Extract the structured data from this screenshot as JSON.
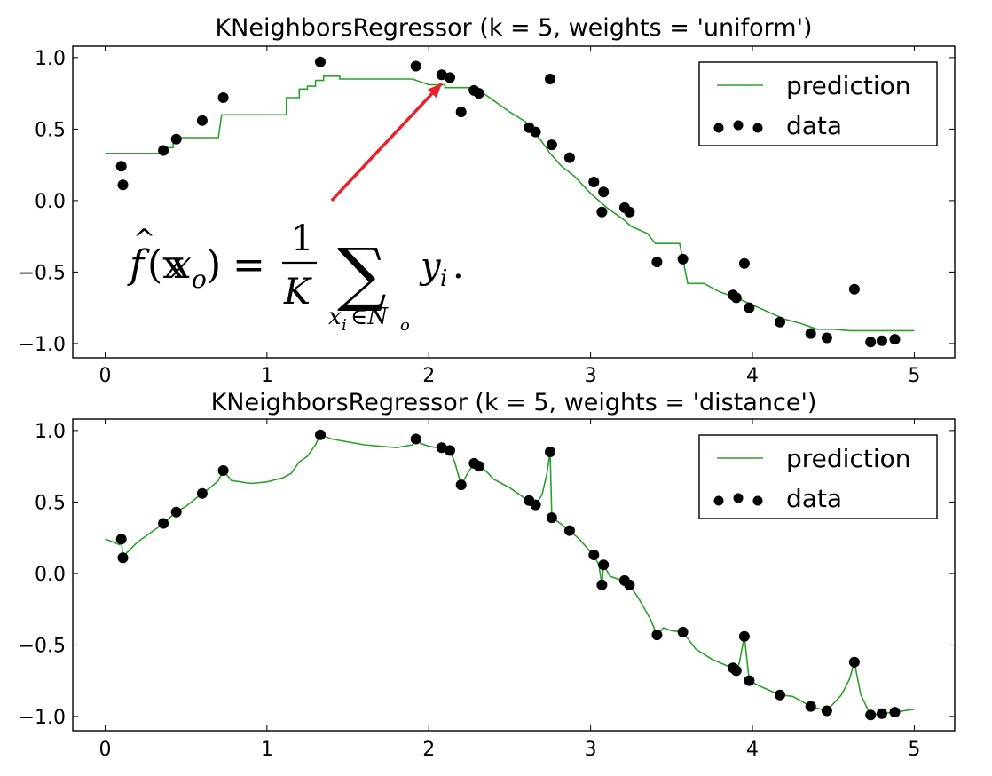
{
  "chart_data": [
    {
      "type": "line",
      "title": "KNeighborsRegressor (k = 5, weights = 'uniform')",
      "xlabel": "",
      "ylabel": "",
      "xlim": [
        -0.2,
        5.25
      ],
      "ylim": [
        -1.1,
        1.08
      ],
      "xticks": [
        0,
        1,
        2,
        3,
        4,
        5
      ],
      "xtick_labels": [
        "0",
        "1",
        "2",
        "3",
        "4",
        "5"
      ],
      "yticks": [
        1.0,
        0.5,
        0.0,
        -0.5,
        -1.0
      ],
      "ytick_labels": [
        "1.0",
        "0.5",
        "0.0",
        "−0.5",
        "−1.0"
      ],
      "legend_position": "top-right",
      "series": [
        {
          "name": "prediction",
          "kind": "line",
          "color": "#2ca02c",
          "x": [
            0,
            0.1,
            0.1,
            0.35,
            0.35,
            0.42,
            0.42,
            0.6,
            0.6,
            0.65,
            0.7,
            0.72,
            1.0,
            1.12,
            1.12,
            1.2,
            1.2,
            1.25,
            1.25,
            1.3,
            1.3,
            1.35,
            1.35,
            1.45,
            1.45,
            1.7,
            1.9,
            2.0,
            2.0,
            2.05,
            2.1,
            2.1,
            2.25,
            2.25,
            2.3,
            2.35,
            2.4,
            2.45,
            2.5,
            2.6,
            2.65,
            2.7,
            2.75,
            2.82,
            2.9,
            2.95,
            3.0,
            3.05,
            3.1,
            3.15,
            3.2,
            3.25,
            3.35,
            3.4,
            3.55,
            3.6,
            3.7,
            3.8,
            3.9,
            4.0,
            4.1,
            4.2,
            4.3,
            4.4,
            4.5,
            4.6,
            4.8,
            5.0
          ],
          "y": [
            0.33,
            0.33,
            0.33,
            0.33,
            0.37,
            0.37,
            0.44,
            0.44,
            0.44,
            0.44,
            0.44,
            0.6,
            0.6,
            0.6,
            0.72,
            0.72,
            0.78,
            0.78,
            0.8,
            0.8,
            0.84,
            0.84,
            0.87,
            0.87,
            0.85,
            0.85,
            0.85,
            0.81,
            0.81,
            0.81,
            0.81,
            0.79,
            0.79,
            0.77,
            0.77,
            0.74,
            0.7,
            0.66,
            0.62,
            0.55,
            0.48,
            0.41,
            0.33,
            0.24,
            0.17,
            0.11,
            0.05,
            0.0,
            -0.05,
            -0.09,
            -0.13,
            -0.18,
            -0.23,
            -0.3,
            -0.3,
            -0.58,
            -0.58,
            -0.64,
            -0.68,
            -0.73,
            -0.78,
            -0.83,
            -0.86,
            -0.9,
            -0.9,
            -0.91,
            -0.91,
            -0.91
          ]
        },
        {
          "name": "data",
          "kind": "scatter",
          "color": "#000000",
          "x": [
            0.1,
            0.11,
            0.36,
            0.44,
            0.6,
            0.73,
            1.33,
            1.92,
            2.08,
            2.13,
            2.2,
            2.28,
            2.31,
            2.62,
            2.66,
            2.75,
            2.76,
            2.87,
            3.02,
            3.07,
            3.08,
            3.21,
            3.24,
            3.41,
            3.57,
            3.88,
            3.9,
            3.95,
            3.98,
            4.17,
            4.36,
            4.46,
            4.63,
            4.73,
            4.8,
            4.88
          ],
          "y": [
            0.24,
            0.11,
            0.35,
            0.43,
            0.56,
            0.72,
            0.97,
            0.94,
            0.88,
            0.86,
            0.62,
            0.77,
            0.75,
            0.51,
            0.48,
            0.85,
            0.39,
            0.3,
            0.13,
            -0.08,
            0.06,
            -0.05,
            -0.08,
            -0.43,
            -0.41,
            -0.66,
            -0.68,
            -0.44,
            -0.75,
            -0.85,
            -0.93,
            -0.96,
            -0.62,
            -0.99,
            -0.98,
            -0.97
          ]
        }
      ],
      "annotation": {
        "formula_f": "f",
        "formula_hat": "^",
        "formula_arg": "(x",
        "formula_arg_sub": "o",
        "formula_arg_close": ")",
        "formula_eq": "=",
        "formula_num": "1",
        "formula_den": "K",
        "formula_sum": "∑",
        "formula_sum_sub_a": "x",
        "formula_sum_sub_a_sub": "i",
        "formula_sum_sub_b": "∈N",
        "formula_sum_sub_b_sub": "o",
        "formula_term": "y",
        "formula_term_sub": "i",
        "formula_period": ".",
        "arrow_color": "#e8212a",
        "arrow_from": [
          1.4,
          0.0
        ],
        "arrow_to": [
          2.08,
          0.82
        ]
      }
    },
    {
      "type": "line",
      "title": "KNeighborsRegressor (k = 5, weights = 'distance')",
      "xlabel": "",
      "ylabel": "",
      "xlim": [
        -0.2,
        5.25
      ],
      "ylim": [
        -1.1,
        1.08
      ],
      "xticks": [
        0,
        1,
        2,
        3,
        4,
        5
      ],
      "xtick_labels": [
        "0",
        "1",
        "2",
        "3",
        "4",
        "5"
      ],
      "yticks": [
        1.0,
        0.5,
        0.0,
        -0.5,
        -1.0
      ],
      "ytick_labels": [
        "1.0",
        "0.5",
        "0.0",
        "−0.5",
        "−1.0"
      ],
      "legend_position": "top-right",
      "series": [
        {
          "name": "prediction",
          "kind": "line",
          "color": "#2ca02c",
          "x": [
            0,
            0.05,
            0.09,
            0.1,
            0.11,
            0.12,
            0.2,
            0.3,
            0.36,
            0.44,
            0.5,
            0.6,
            0.65,
            0.7,
            0.73,
            0.78,
            0.9,
            1.0,
            1.1,
            1.15,
            1.2,
            1.25,
            1.3,
            1.33,
            1.4,
            1.6,
            1.8,
            1.9,
            1.92,
            1.95,
            2.0,
            2.05,
            2.08,
            2.13,
            2.16,
            2.2,
            2.24,
            2.28,
            2.31,
            2.35,
            2.4,
            2.45,
            2.5,
            2.55,
            2.6,
            2.62,
            2.66,
            2.7,
            2.73,
            2.75,
            2.76,
            2.8,
            2.87,
            2.93,
            3.0,
            3.02,
            3.05,
            3.07,
            3.08,
            3.12,
            3.17,
            3.21,
            3.24,
            3.3,
            3.37,
            3.41,
            3.45,
            3.5,
            3.57,
            3.65,
            3.75,
            3.85,
            3.88,
            3.9,
            3.92,
            3.95,
            3.98,
            4.05,
            4.17,
            4.25,
            4.36,
            4.46,
            4.55,
            4.6,
            4.63,
            4.67,
            4.73,
            4.8,
            4.88,
            5.0
          ],
          "y": [
            0.24,
            0.22,
            0.2,
            0.24,
            0.11,
            0.13,
            0.22,
            0.3,
            0.35,
            0.43,
            0.47,
            0.56,
            0.6,
            0.65,
            0.72,
            0.65,
            0.63,
            0.64,
            0.67,
            0.7,
            0.78,
            0.82,
            0.9,
            0.97,
            0.94,
            0.9,
            0.88,
            0.9,
            0.94,
            0.91,
            0.89,
            0.88,
            0.88,
            0.86,
            0.78,
            0.62,
            0.7,
            0.77,
            0.75,
            0.72,
            0.66,
            0.63,
            0.6,
            0.56,
            0.52,
            0.51,
            0.48,
            0.55,
            0.7,
            0.85,
            0.39,
            0.36,
            0.3,
            0.24,
            0.15,
            0.13,
            0.06,
            -0.08,
            0.06,
            -0.02,
            -0.04,
            -0.05,
            -0.08,
            -0.18,
            -0.32,
            -0.43,
            -0.38,
            -0.4,
            -0.41,
            -0.53,
            -0.6,
            -0.65,
            -0.66,
            -0.68,
            -0.62,
            -0.44,
            -0.75,
            -0.79,
            -0.85,
            -0.86,
            -0.93,
            -0.96,
            -0.85,
            -0.74,
            -0.62,
            -0.85,
            -0.99,
            -0.98,
            -0.97,
            -0.95
          ]
        },
        {
          "name": "data",
          "kind": "scatter",
          "color": "#000000",
          "x": [
            0.1,
            0.11,
            0.36,
            0.44,
            0.6,
            0.73,
            1.33,
            1.92,
            2.08,
            2.13,
            2.2,
            2.28,
            2.31,
            2.62,
            2.66,
            2.75,
            2.76,
            2.87,
            3.02,
            3.07,
            3.08,
            3.21,
            3.24,
            3.41,
            3.57,
            3.88,
            3.9,
            3.95,
            3.98,
            4.17,
            4.36,
            4.46,
            4.63,
            4.73,
            4.8,
            4.88
          ],
          "y": [
            0.24,
            0.11,
            0.35,
            0.43,
            0.56,
            0.72,
            0.97,
            0.94,
            0.88,
            0.86,
            0.62,
            0.77,
            0.75,
            0.51,
            0.48,
            0.85,
            0.39,
            0.3,
            0.13,
            -0.08,
            0.06,
            -0.05,
            -0.08,
            -0.43,
            -0.41,
            -0.66,
            -0.68,
            -0.44,
            -0.75,
            -0.85,
            -0.93,
            -0.96,
            -0.62,
            -0.99,
            -0.98,
            -0.97
          ]
        }
      ]
    }
  ]
}
